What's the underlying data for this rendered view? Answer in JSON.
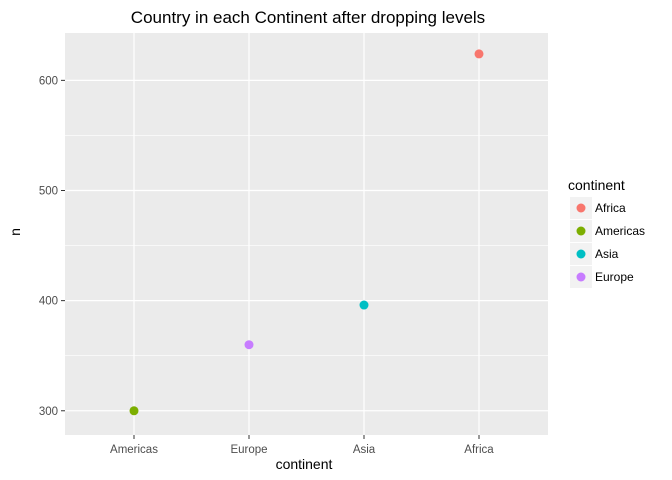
{
  "chart_data": {
    "type": "scatter",
    "title": "Country in each Continent after dropping levels",
    "xlabel": "continent",
    "ylabel": "n",
    "categories": [
      "Americas",
      "Europe",
      "Asia",
      "Africa"
    ],
    "values": [
      300,
      360,
      396,
      624
    ],
    "ylim": [
      278,
      643
    ],
    "yticks": [
      300,
      400,
      500,
      600
    ],
    "grid": true,
    "legend": {
      "title": "continent",
      "position": "right",
      "entries": [
        {
          "label": "Africa",
          "color": "#F8766D"
        },
        {
          "label": "Americas",
          "color": "#7CAE00"
        },
        {
          "label": "Asia",
          "color": "#00BFC4"
        },
        {
          "label": "Europe",
          "color": "#C77CFF"
        }
      ]
    },
    "point_colors": {
      "Americas": "#7CAE00",
      "Europe": "#C77CFF",
      "Asia": "#00BFC4",
      "Africa": "#F8766D"
    }
  },
  "colors": {
    "panel_background": "#EBEBEB",
    "grid_major": "#FFFFFF",
    "tick_text": "#4D4D4D"
  }
}
